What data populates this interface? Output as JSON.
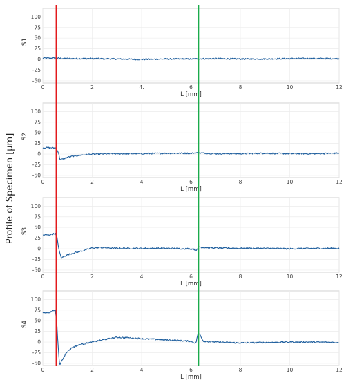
{
  "figure": {
    "shared_ylabel": "Profile of Specimen [µm]"
  },
  "markers": [
    {
      "x": 0.55,
      "color": "#e31a1c"
    },
    {
      "x": 6.3,
      "color": "#1aab4b"
    }
  ],
  "chart_data": [
    {
      "type": "line",
      "ylabel": "S1",
      "xlabel": "L [mm]",
      "xlim": [
        0,
        12
      ],
      "ylim": [
        -55,
        120
      ],
      "xticks": [
        0,
        2,
        4,
        6,
        8,
        10,
        12
      ],
      "xtick_labels": [
        "0",
        "2",
        "4.",
        "6",
        "8",
        "10",
        "12"
      ],
      "yticks": [
        -50,
        -25,
        0,
        25,
        50,
        75,
        100
      ],
      "line_color": "#1f5f9e",
      "grid": true,
      "series": [
        {
          "x": [
            0,
            0.5,
            1,
            2,
            3,
            4,
            5,
            6,
            7,
            8,
            9,
            10,
            11,
            12
          ],
          "y": [
            3,
            3,
            2,
            2,
            1,
            0,
            1,
            1,
            2,
            1,
            1,
            2,
            2,
            2
          ]
        }
      ]
    },
    {
      "type": "line",
      "ylabel": "S2",
      "xlabel": "L [mm]",
      "xlim": [
        0,
        12
      ],
      "ylim": [
        -55,
        120
      ],
      "xticks": [
        0,
        2,
        4,
        6,
        8,
        10,
        12
      ],
      "xtick_labels": [
        "0",
        "2",
        "4",
        "6",
        "8",
        "10",
        "12"
      ],
      "yticks": [
        -50,
        -25,
        0,
        25,
        50,
        75,
        100
      ],
      "line_color": "#1f5f9e",
      "grid": true,
      "series": [
        {
          "x": [
            0,
            0.3,
            0.55,
            0.62,
            0.7,
            0.85,
            1.0,
            1.3,
            1.6,
            2,
            3,
            4,
            5,
            6,
            6.3,
            7,
            8,
            9,
            10,
            11,
            12
          ],
          "y": [
            15,
            15,
            14,
            5,
            -13,
            -11,
            -7,
            -4,
            -2,
            0,
            1,
            1,
            2,
            2,
            3,
            1,
            1,
            2,
            1,
            1,
            2
          ]
        }
      ]
    },
    {
      "type": "line",
      "ylabel": "S3",
      "xlabel": "L [mm]",
      "xlim": [
        0,
        12
      ],
      "ylim": [
        -55,
        120
      ],
      "xticks": [
        0,
        2,
        4,
        6,
        8,
        10,
        12
      ],
      "xtick_labels": [
        "0",
        "2",
        "4",
        "6",
        "8",
        "10",
        "12"
      ],
      "yticks": [
        -50,
        -25,
        0,
        25,
        50,
        75,
        100
      ],
      "line_color": "#1f5f9e",
      "grid": true,
      "series": [
        {
          "x": [
            0,
            0.3,
            0.5,
            0.58,
            0.66,
            0.75,
            0.85,
            1.0,
            1.3,
            1.6,
            2,
            2.3,
            3,
            4,
            5,
            6,
            6.25,
            6.32,
            6.45,
            7,
            8,
            9,
            10,
            11,
            12
          ],
          "y": [
            32,
            33,
            36,
            25,
            -5,
            -22,
            -18,
            -14,
            -9,
            -5,
            2,
            3,
            1,
            1,
            1,
            0,
            -3,
            5,
            3,
            2,
            1,
            1,
            0,
            1,
            1
          ]
        }
      ]
    },
    {
      "type": "line",
      "ylabel": "S4",
      "xlabel": "L [mm]",
      "xlim": [
        0,
        12
      ],
      "ylim": [
        -55,
        120
      ],
      "xticks": [
        0,
        2,
        4,
        6,
        8,
        10,
        12
      ],
      "xtick_labels": [
        "0",
        "2",
        "4",
        "6",
        "8",
        "10",
        "12"
      ],
      "yticks": [
        -50,
        -25,
        0,
        25,
        50,
        75,
        100
      ],
      "line_color": "#1f5f9e",
      "grid": true,
      "series": [
        {
          "x": [
            0,
            0.3,
            0.5,
            0.56,
            0.62,
            0.68,
            0.75,
            0.82,
            0.9,
            1.0,
            1.2,
            1.5,
            2,
            2.5,
            3,
            3.5,
            4,
            5,
            6,
            6.2,
            6.28,
            6.36,
            6.5,
            7,
            8,
            9,
            10,
            11,
            12
          ],
          "y": [
            68,
            70,
            76,
            50,
            -10,
            -55,
            -45,
            -38,
            -30,
            -22,
            -12,
            -6,
            0,
            6,
            11,
            10,
            8,
            5,
            2,
            -3,
            20,
            18,
            2,
            0,
            -2,
            -1,
            0,
            0,
            -1
          ]
        }
      ]
    }
  ]
}
